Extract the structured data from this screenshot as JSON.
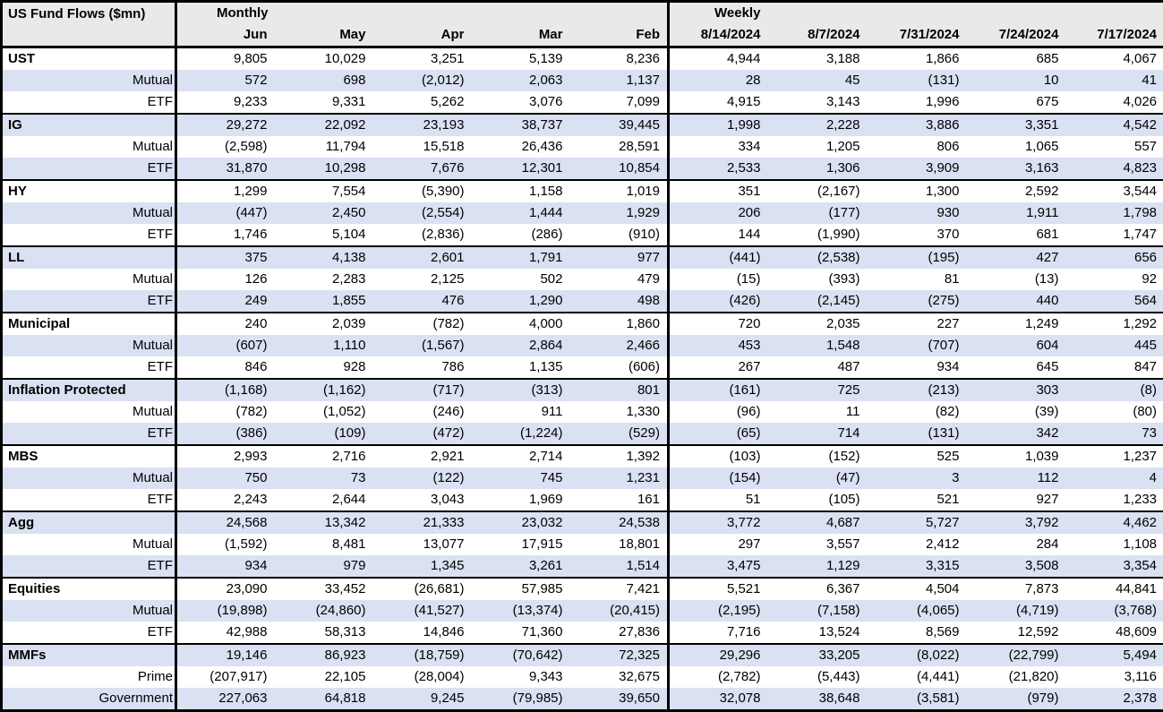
{
  "colors": {
    "stripe": "#d9e1f2",
    "header_bg": "#e9e9e9",
    "border": "#000000",
    "text": "#000000"
  },
  "chart_data": {
    "type": "table",
    "title": "US Fund Flows ($mn)",
    "sections": [
      {
        "label": "Monthly",
        "columns": [
          "Jun",
          "May",
          "Apr",
          "Mar",
          "Feb"
        ]
      },
      {
        "label": "Weekly",
        "columns": [
          "8/14/2024",
          "8/7/2024",
          "7/31/2024",
          "7/24/2024",
          "7/17/2024"
        ]
      }
    ],
    "groups": [
      {
        "rows": [
          {
            "label": "UST",
            "monthly": [
              "9,805",
              "10,029",
              "3,251",
              "5,139",
              "8,236"
            ],
            "weekly": [
              "4,944",
              "3,188",
              "1,866",
              "685",
              "4,067"
            ]
          },
          {
            "label": "Mutual",
            "monthly": [
              "572",
              "698",
              "(2,012)",
              "2,063",
              "1,137"
            ],
            "weekly": [
              "28",
              "45",
              "(131)",
              "10",
              "41"
            ]
          },
          {
            "label": "ETF",
            "monthly": [
              "9,233",
              "9,331",
              "5,262",
              "3,076",
              "7,099"
            ],
            "weekly": [
              "4,915",
              "3,143",
              "1,996",
              "675",
              "4,026"
            ]
          }
        ]
      },
      {
        "rows": [
          {
            "label": "IG",
            "monthly": [
              "29,272",
              "22,092",
              "23,193",
              "38,737",
              "39,445"
            ],
            "weekly": [
              "1,998",
              "2,228",
              "3,886",
              "3,351",
              "4,542"
            ]
          },
          {
            "label": "Mutual",
            "monthly": [
              "(2,598)",
              "11,794",
              "15,518",
              "26,436",
              "28,591"
            ],
            "weekly": [
              "334",
              "1,205",
              "806",
              "1,065",
              "557"
            ]
          },
          {
            "label": "ETF",
            "monthly": [
              "31,870",
              "10,298",
              "7,676",
              "12,301",
              "10,854"
            ],
            "weekly": [
              "2,533",
              "1,306",
              "3,909",
              "3,163",
              "4,823"
            ]
          }
        ]
      },
      {
        "rows": [
          {
            "label": "HY",
            "monthly": [
              "1,299",
              "7,554",
              "(5,390)",
              "1,158",
              "1,019"
            ],
            "weekly": [
              "351",
              "(2,167)",
              "1,300",
              "2,592",
              "3,544"
            ]
          },
          {
            "label": "Mutual",
            "monthly": [
              "(447)",
              "2,450",
              "(2,554)",
              "1,444",
              "1,929"
            ],
            "weekly": [
              "206",
              "(177)",
              "930",
              "1,911",
              "1,798"
            ]
          },
          {
            "label": "ETF",
            "monthly": [
              "1,746",
              "5,104",
              "(2,836)",
              "(286)",
              "(910)"
            ],
            "weekly": [
              "144",
              "(1,990)",
              "370",
              "681",
              "1,747"
            ]
          }
        ]
      },
      {
        "rows": [
          {
            "label": "LL",
            "monthly": [
              "375",
              "4,138",
              "2,601",
              "1,791",
              "977"
            ],
            "weekly": [
              "(441)",
              "(2,538)",
              "(195)",
              "427",
              "656"
            ]
          },
          {
            "label": "Mutual",
            "monthly": [
              "126",
              "2,283",
              "2,125",
              "502",
              "479"
            ],
            "weekly": [
              "(15)",
              "(393)",
              "81",
              "(13)",
              "92"
            ]
          },
          {
            "label": "ETF",
            "monthly": [
              "249",
              "1,855",
              "476",
              "1,290",
              "498"
            ],
            "weekly": [
              "(426)",
              "(2,145)",
              "(275)",
              "440",
              "564"
            ]
          }
        ]
      },
      {
        "rows": [
          {
            "label": "Municipal",
            "monthly": [
              "240",
              "2,039",
              "(782)",
              "4,000",
              "1,860"
            ],
            "weekly": [
              "720",
              "2,035",
              "227",
              "1,249",
              "1,292"
            ]
          },
          {
            "label": "Mutual",
            "monthly": [
              "(607)",
              "1,110",
              "(1,567)",
              "2,864",
              "2,466"
            ],
            "weekly": [
              "453",
              "1,548",
              "(707)",
              "604",
              "445"
            ]
          },
          {
            "label": "ETF",
            "monthly": [
              "846",
              "928",
              "786",
              "1,135",
              "(606)"
            ],
            "weekly": [
              "267",
              "487",
              "934",
              "645",
              "847"
            ]
          }
        ]
      },
      {
        "rows": [
          {
            "label": "Inflation Protected",
            "monthly": [
              "(1,168)",
              "(1,162)",
              "(717)",
              "(313)",
              "801"
            ],
            "weekly": [
              "(161)",
              "725",
              "(213)",
              "303",
              "(8)"
            ]
          },
          {
            "label": "Mutual",
            "monthly": [
              "(782)",
              "(1,052)",
              "(246)",
              "911",
              "1,330"
            ],
            "weekly": [
              "(96)",
              "11",
              "(82)",
              "(39)",
              "(80)"
            ]
          },
          {
            "label": "ETF",
            "monthly": [
              "(386)",
              "(109)",
              "(472)",
              "(1,224)",
              "(529)"
            ],
            "weekly": [
              "(65)",
              "714",
              "(131)",
              "342",
              "73"
            ]
          }
        ]
      },
      {
        "rows": [
          {
            "label": "MBS",
            "monthly": [
              "2,993",
              "2,716",
              "2,921",
              "2,714",
              "1,392"
            ],
            "weekly": [
              "(103)",
              "(152)",
              "525",
              "1,039",
              "1,237"
            ]
          },
          {
            "label": "Mutual",
            "monthly": [
              "750",
              "73",
              "(122)",
              "745",
              "1,231"
            ],
            "weekly": [
              "(154)",
              "(47)",
              "3",
              "112",
              "4"
            ]
          },
          {
            "label": "ETF",
            "monthly": [
              "2,243",
              "2,644",
              "3,043",
              "1,969",
              "161"
            ],
            "weekly": [
              "51",
              "(105)",
              "521",
              "927",
              "1,233"
            ]
          }
        ]
      },
      {
        "rows": [
          {
            "label": "Agg",
            "monthly": [
              "24,568",
              "13,342",
              "21,333",
              "23,032",
              "24,538"
            ],
            "weekly": [
              "3,772",
              "4,687",
              "5,727",
              "3,792",
              "4,462"
            ]
          },
          {
            "label": "Mutual",
            "monthly": [
              "(1,592)",
              "8,481",
              "13,077",
              "17,915",
              "18,801"
            ],
            "weekly": [
              "297",
              "3,557",
              "2,412",
              "284",
              "1,108"
            ]
          },
          {
            "label": "ETF",
            "monthly": [
              "934",
              "979",
              "1,345",
              "3,261",
              "1,514"
            ],
            "weekly": [
              "3,475",
              "1,129",
              "3,315",
              "3,508",
              "3,354"
            ]
          }
        ]
      },
      {
        "rows": [
          {
            "label": "Equities",
            "monthly": [
              "23,090",
              "33,452",
              "(26,681)",
              "57,985",
              "7,421"
            ],
            "weekly": [
              "5,521",
              "6,367",
              "4,504",
              "7,873",
              "44,841"
            ]
          },
          {
            "label": "Mutual",
            "monthly": [
              "(19,898)",
              "(24,860)",
              "(41,527)",
              "(13,374)",
              "(20,415)"
            ],
            "weekly": [
              "(2,195)",
              "(7,158)",
              "(4,065)",
              "(4,719)",
              "(3,768)"
            ]
          },
          {
            "label": "ETF",
            "monthly": [
              "42,988",
              "58,313",
              "14,846",
              "71,360",
              "27,836"
            ],
            "weekly": [
              "7,716",
              "13,524",
              "8,569",
              "12,592",
              "48,609"
            ]
          }
        ]
      },
      {
        "rows": [
          {
            "label": "MMFs",
            "monthly": [
              "19,146",
              "86,923",
              "(18,759)",
              "(70,642)",
              "72,325"
            ],
            "weekly": [
              "29,296",
              "33,205",
              "(8,022)",
              "(22,799)",
              "5,494"
            ]
          },
          {
            "label": "Prime",
            "monthly": [
              "(207,917)",
              "22,105",
              "(28,004)",
              "9,343",
              "32,675"
            ],
            "weekly": [
              "(2,782)",
              "(5,443)",
              "(4,441)",
              "(21,820)",
              "3,116"
            ]
          },
          {
            "label": "Government",
            "monthly": [
              "227,063",
              "64,818",
              "9,245",
              "(79,985)",
              "39,650"
            ],
            "weekly": [
              "32,078",
              "38,648",
              "(3,581)",
              "(979)",
              "2,378"
            ]
          }
        ]
      }
    ]
  }
}
